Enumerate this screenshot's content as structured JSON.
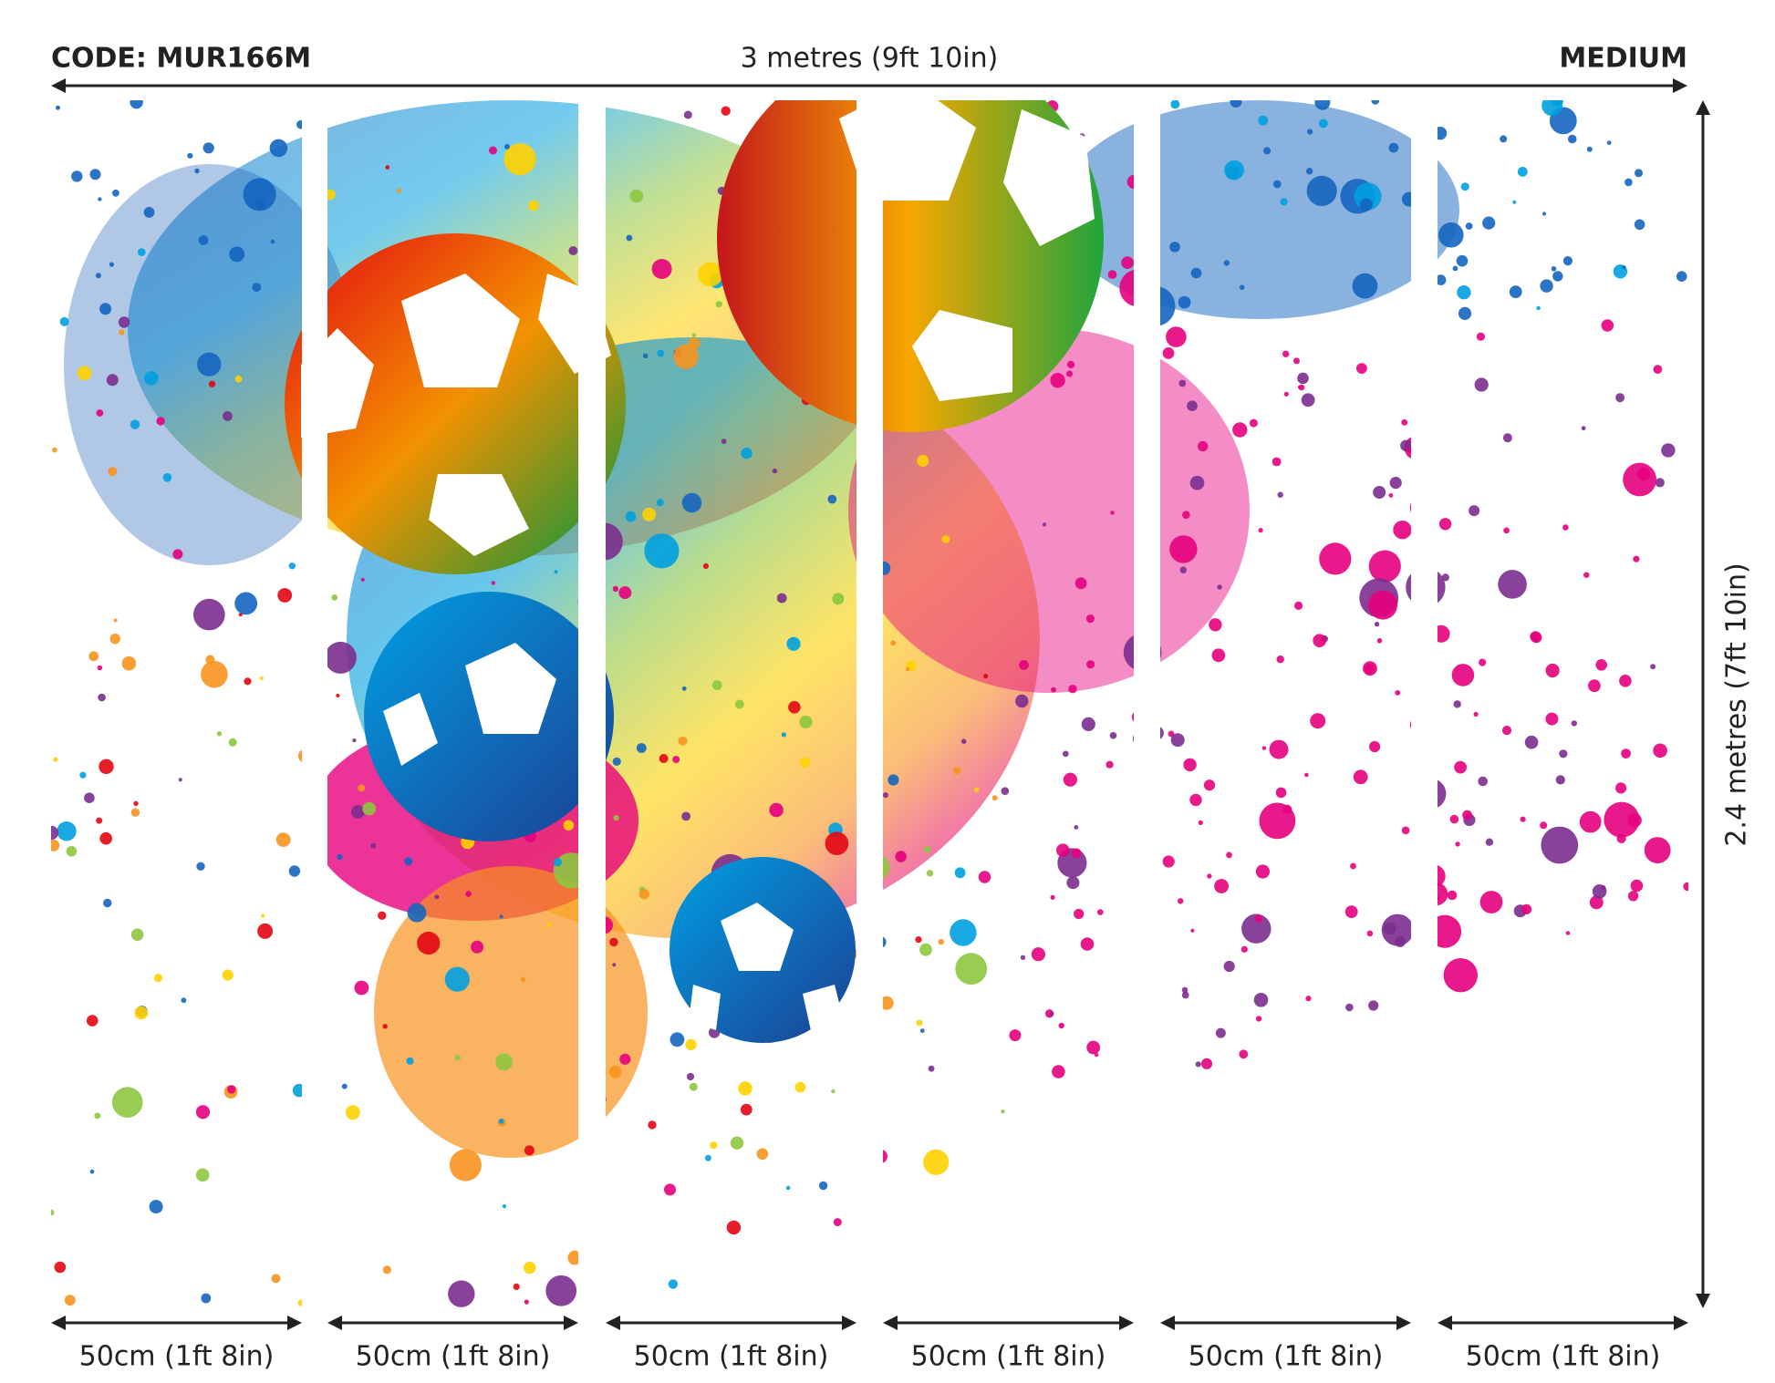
{
  "header": {
    "code": "CODE: MUR166M",
    "width": "3 metres (9ft 10in)",
    "size": "MEDIUM"
  },
  "height": "2.4 metres (7ft 10in)",
  "panels": [
    "50cm (1ft 8in)",
    "50cm (1ft 8in)",
    "50cm (1ft 8in)",
    "50cm (1ft 8in)",
    "50cm (1ft 8in)",
    "50cm (1ft 8in)"
  ]
}
